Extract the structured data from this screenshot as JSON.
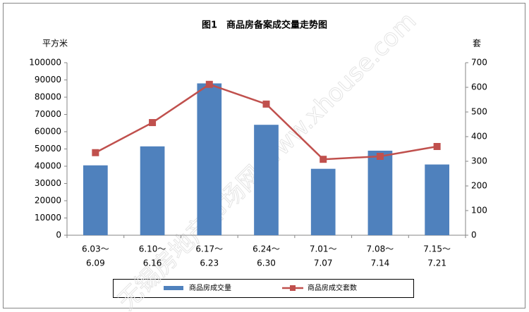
{
  "chart_data": {
    "type": "bar-line",
    "title": "图1　商品房备案成交量走势图",
    "y_label": "平方米",
    "y2_label": "套",
    "watermark": "无锡房地产市场网 www.xhouse.com",
    "categories": [
      [
        "6.03～",
        "6.09"
      ],
      [
        "6.10～",
        "6.16"
      ],
      [
        "6.17～",
        "6.23"
      ],
      [
        "6.24～",
        "6.30"
      ],
      [
        "7.01～",
        "7.07"
      ],
      [
        "7.08～",
        "7.14"
      ],
      [
        "7.15～",
        "7.21"
      ]
    ],
    "series": [
      {
        "name": "商品房成交量",
        "type": "bar",
        "color": "#4f81bd",
        "values": [
          40500,
          51500,
          88000,
          64000,
          38500,
          49000,
          41000
        ]
      },
      {
        "name": "商品房成交套数",
        "type": "line",
        "axis": "y2",
        "color": "#c0504d",
        "values": [
          335,
          457,
          612,
          532,
          308,
          320,
          360
        ]
      }
    ],
    "ylim": [
      0,
      100000
    ],
    "yticks": [
      0,
      10000,
      20000,
      30000,
      40000,
      50000,
      60000,
      70000,
      80000,
      90000,
      100000
    ],
    "y2lim": [
      0,
      700
    ],
    "y2ticks": [
      0,
      100,
      200,
      300,
      400,
      500,
      600,
      700
    ],
    "legend": "bottom"
  }
}
